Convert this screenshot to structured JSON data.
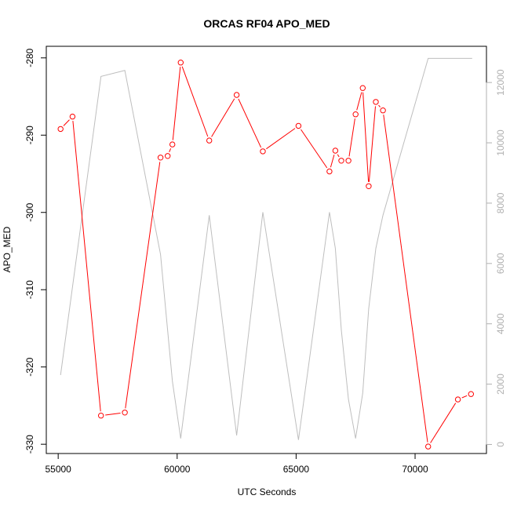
{
  "chart_data": {
    "type": "line",
    "title": "ORCAS RF04 APO_MED",
    "xlabel": "UTC Seconds",
    "ylabel": "APO_MED",
    "xlim": [
      54500,
      73000
    ],
    "ylim": [
      -331.2,
      -278.5
    ],
    "ylim_right": [
      -300,
      13200
    ],
    "x_ticks": [
      55000,
      60000,
      65000,
      70000
    ],
    "y_ticks": [
      -280,
      -290,
      -300,
      -310,
      -320,
      -330
    ],
    "y_ticks_right": [
      0,
      2000,
      4000,
      6000,
      8000,
      10000,
      12000
    ],
    "colors": {
      "primary": "#ff0000",
      "secondary": "#bebebe",
      "right_axis": "#b0b0b0"
    },
    "series": [
      {
        "axis": "left",
        "style": "line-with-open-circles",
        "points": [
          [
            55100,
            -289.2
          ],
          [
            55600,
            -287.6
          ],
          [
            56800,
            -326.3
          ],
          [
            57800,
            -325.9
          ],
          [
            59300,
            -292.9
          ],
          [
            59600,
            -292.7
          ],
          [
            59800,
            -291.2
          ],
          [
            60150,
            -280.6
          ],
          [
            61350,
            -290.7
          ],
          [
            62500,
            -284.8
          ],
          [
            63600,
            -292.1
          ],
          [
            65100,
            -288.8
          ],
          [
            66400,
            -294.7
          ],
          [
            66650,
            -292.0
          ],
          [
            66900,
            -293.3
          ],
          [
            67200,
            -293.3
          ],
          [
            67500,
            -287.3
          ],
          [
            67800,
            -283.9
          ],
          [
            68050,
            -296.6
          ],
          [
            68350,
            -285.7
          ],
          [
            68650,
            -286.8
          ],
          [
            70550,
            -330.3
          ],
          [
            71800,
            -324.2
          ],
          [
            72350,
            -323.5
          ]
        ]
      },
      {
        "axis": "right",
        "style": "line",
        "points": [
          [
            55100,
            2300
          ],
          [
            56800,
            12200
          ],
          [
            57800,
            12400
          ],
          [
            59300,
            6300
          ],
          [
            59800,
            2100
          ],
          [
            60150,
            200
          ],
          [
            61350,
            7600
          ],
          [
            62500,
            300
          ],
          [
            63600,
            7700
          ],
          [
            65100,
            150
          ],
          [
            66400,
            7700
          ],
          [
            66650,
            6500
          ],
          [
            66900,
            3800
          ],
          [
            67200,
            1500
          ],
          [
            67500,
            200
          ],
          [
            67800,
            1700
          ],
          [
            68050,
            4500
          ],
          [
            68350,
            6500
          ],
          [
            68650,
            7600
          ],
          [
            70550,
            12800
          ],
          [
            72400,
            12800
          ]
        ]
      }
    ]
  }
}
